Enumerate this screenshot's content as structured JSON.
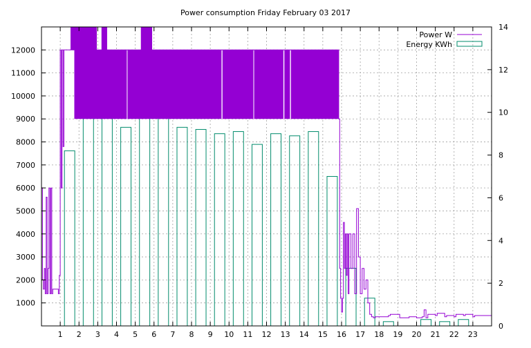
{
  "chart_data": {
    "type": "bar",
    "title": "Power consumption Friday February 03 2017",
    "xlabel": "",
    "ylabel": "",
    "y2label": "",
    "grid": true,
    "legend_position": "top-right",
    "xlim": [
      0,
      24
    ],
    "ylim": [
      0,
      13000
    ],
    "y2lim": [
      0,
      14
    ],
    "x_ticks": [
      1,
      2,
      3,
      4,
      5,
      6,
      7,
      8,
      9,
      10,
      11,
      12,
      13,
      14,
      15,
      16,
      17,
      18,
      19,
      20,
      21,
      22,
      23
    ],
    "y_ticks": [
      1000,
      2000,
      3000,
      4000,
      5000,
      6000,
      7000,
      8000,
      9000,
      10000,
      11000,
      12000
    ],
    "y2_ticks": [
      0,
      2,
      4,
      6,
      8,
      10,
      12,
      14
    ],
    "series": [
      {
        "name": "Power W",
        "kind": "line",
        "axis": "y",
        "color": "#9400d3",
        "x": [
          0.0,
          0.05,
          0.1,
          0.15,
          0.2,
          0.25,
          0.3,
          0.35,
          0.4,
          0.45,
          0.5,
          0.55,
          0.6,
          0.65,
          0.7,
          0.75,
          0.8,
          0.85,
          0.9,
          0.95,
          1.0,
          1.05,
          1.1,
          1.15,
          1.2,
          1.25,
          1.3,
          1.35,
          1.4,
          1.45,
          1.5,
          1.55,
          1.6,
          1.65,
          1.7,
          1.75,
          15.85,
          15.9,
          15.95,
          16.0,
          16.05,
          16.1,
          16.15,
          16.2,
          16.25,
          16.3,
          16.35,
          16.4,
          16.5,
          16.6,
          16.7,
          16.8,
          16.9,
          17.0,
          17.1,
          17.2,
          17.3,
          17.4,
          17.5,
          17.6,
          17.7,
          17.8,
          17.9,
          18.0,
          18.5,
          18.6,
          19.0,
          19.1,
          19.5,
          19.6,
          20.0,
          20.3,
          20.4,
          20.5,
          20.6,
          21.0,
          21.1,
          21.5,
          21.6,
          22.0,
          22.1,
          22.5,
          22.6,
          23.0,
          23.1,
          23.5,
          24.0
        ],
        "values": [
          6000,
          2000,
          1600,
          2500,
          1400,
          5600,
          1400,
          2500,
          6000,
          1400,
          6000,
          1400,
          1600,
          1600,
          1600,
          1600,
          1600,
          1600,
          1400,
          2200,
          12000,
          6000,
          12000,
          7800,
          12000,
          12000,
          12000,
          12000,
          12000,
          12000,
          12000,
          12000,
          12000,
          12000,
          12000,
          12000,
          9000,
          2500,
          1200,
          600,
          1200,
          4500,
          2500,
          4000,
          2200,
          4000,
          1400,
          4000,
          2500,
          4000,
          1400,
          5100,
          3000,
          1400,
          2500,
          1600,
          2000,
          1000,
          500,
          400,
          350,
          400,
          400,
          400,
          450,
          500,
          500,
          350,
          350,
          400,
          350,
          400,
          700,
          350,
          500,
          450,
          550,
          400,
          450,
          400,
          500,
          450,
          500,
          400,
          450,
          450,
          450
        ]
      },
      {
        "name": "Energy KWh",
        "kind": "bar",
        "axis": "y2",
        "color": "#008b6b",
        "categories": [
          0,
          1,
          2,
          3,
          4,
          5,
          6,
          7,
          8,
          9,
          10,
          11,
          12,
          13,
          14,
          15,
          16,
          17,
          18,
          19,
          20,
          21,
          22,
          23
        ],
        "values": [
          0.0,
          8.2,
          12.2,
          10.2,
          9.3,
          11.3,
          10.6,
          9.3,
          9.2,
          9.0,
          9.1,
          8.5,
          9.0,
          8.9,
          9.1,
          7.0,
          2.7,
          1.3,
          0.2,
          0.0,
          0.3,
          0.2,
          0.3,
          0.0
        ]
      }
    ]
  }
}
